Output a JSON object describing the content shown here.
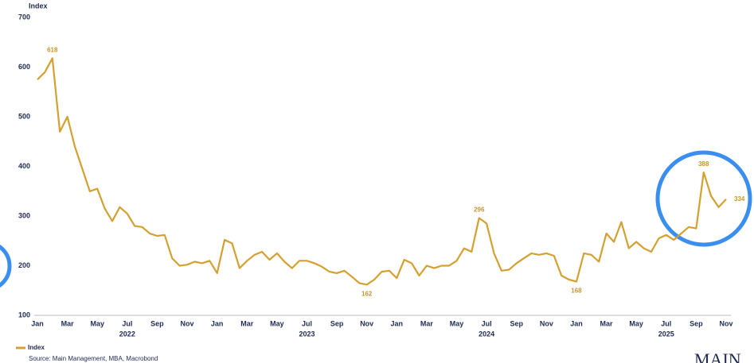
{
  "chart_data": {
    "type": "line",
    "y_label": "Index",
    "categories": [
      "Jan",
      null,
      null,
      null,
      "Mar",
      null,
      null,
      null,
      "May",
      null,
      null,
      null,
      "Jul",
      null,
      null,
      null,
      "Sep",
      null,
      null,
      null,
      "Nov",
      null,
      null,
      null,
      "Jan",
      null,
      null,
      null,
      "Mar",
      null,
      null,
      null,
      "May",
      null,
      null,
      null,
      "Jul",
      null,
      null,
      null,
      "Sep",
      null,
      null,
      null,
      "Nov",
      null,
      null,
      null,
      "Jan",
      null,
      null,
      null,
      "Mar",
      null,
      null,
      null,
      "May",
      null,
      null,
      null,
      "Jul",
      null,
      null,
      null,
      "Sep",
      null,
      null,
      null,
      "Nov",
      null,
      null,
      null,
      "Jan",
      null,
      null,
      null,
      "Mar",
      null,
      null,
      null,
      "May",
      null,
      null,
      null,
      "Jul",
      null,
      null,
      null,
      "Sep",
      null,
      null,
      null,
      "Nov"
    ],
    "category_years": [
      null,
      null,
      null,
      null,
      null,
      null,
      null,
      null,
      null,
      null,
      null,
      null,
      "2022",
      null,
      null,
      null,
      null,
      null,
      null,
      null,
      null,
      null,
      null,
      null,
      null,
      null,
      null,
      null,
      null,
      null,
      null,
      null,
      null,
      null,
      null,
      null,
      "2023",
      null,
      null,
      null,
      null,
      null,
      null,
      null,
      null,
      null,
      null,
      null,
      null,
      null,
      null,
      null,
      null,
      null,
      null,
      null,
      null,
      null,
      null,
      null,
      "2024",
      null,
      null,
      null,
      null,
      null,
      null,
      null,
      null,
      null,
      null,
      null,
      null,
      null,
      null,
      null,
      null,
      null,
      null,
      null,
      null,
      null,
      null,
      null,
      "2025",
      null,
      null,
      null,
      null,
      null,
      null,
      null,
      null
    ],
    "series": [
      {
        "name": "Index",
        "color": "#d4a030",
        "values": [
          575,
          590,
          618,
          470,
          500,
          440,
          395,
          350,
          355,
          315,
          290,
          318,
          305,
          280,
          278,
          265,
          260,
          262,
          215,
          200,
          202,
          208,
          205,
          210,
          185,
          252,
          245,
          195,
          210,
          222,
          228,
          212,
          225,
          208,
          195,
          210,
          210,
          205,
          198,
          188,
          185,
          190,
          178,
          165,
          162,
          172,
          188,
          190,
          175,
          212,
          205,
          180,
          200,
          195,
          200,
          200,
          210,
          235,
          228,
          296,
          285,
          225,
          190,
          192,
          205,
          215,
          225,
          222,
          225,
          220,
          180,
          172,
          168,
          225,
          222,
          208,
          265,
          248,
          288,
          235,
          248,
          235,
          228,
          255,
          262,
          252,
          265,
          278,
          275,
          388,
          340,
          318,
          334
        ],
        "labeled": [
          2,
          44,
          59,
          72,
          89,
          92
        ]
      }
    ],
    "ylim": [
      100,
      700
    ],
    "yticks": [
      100,
      200,
      300,
      400,
      500,
      600,
      700
    ],
    "legend": "bottom-left",
    "source": "Source: Main Management, MBA, Macrobond",
    "logo": "MAIN"
  }
}
